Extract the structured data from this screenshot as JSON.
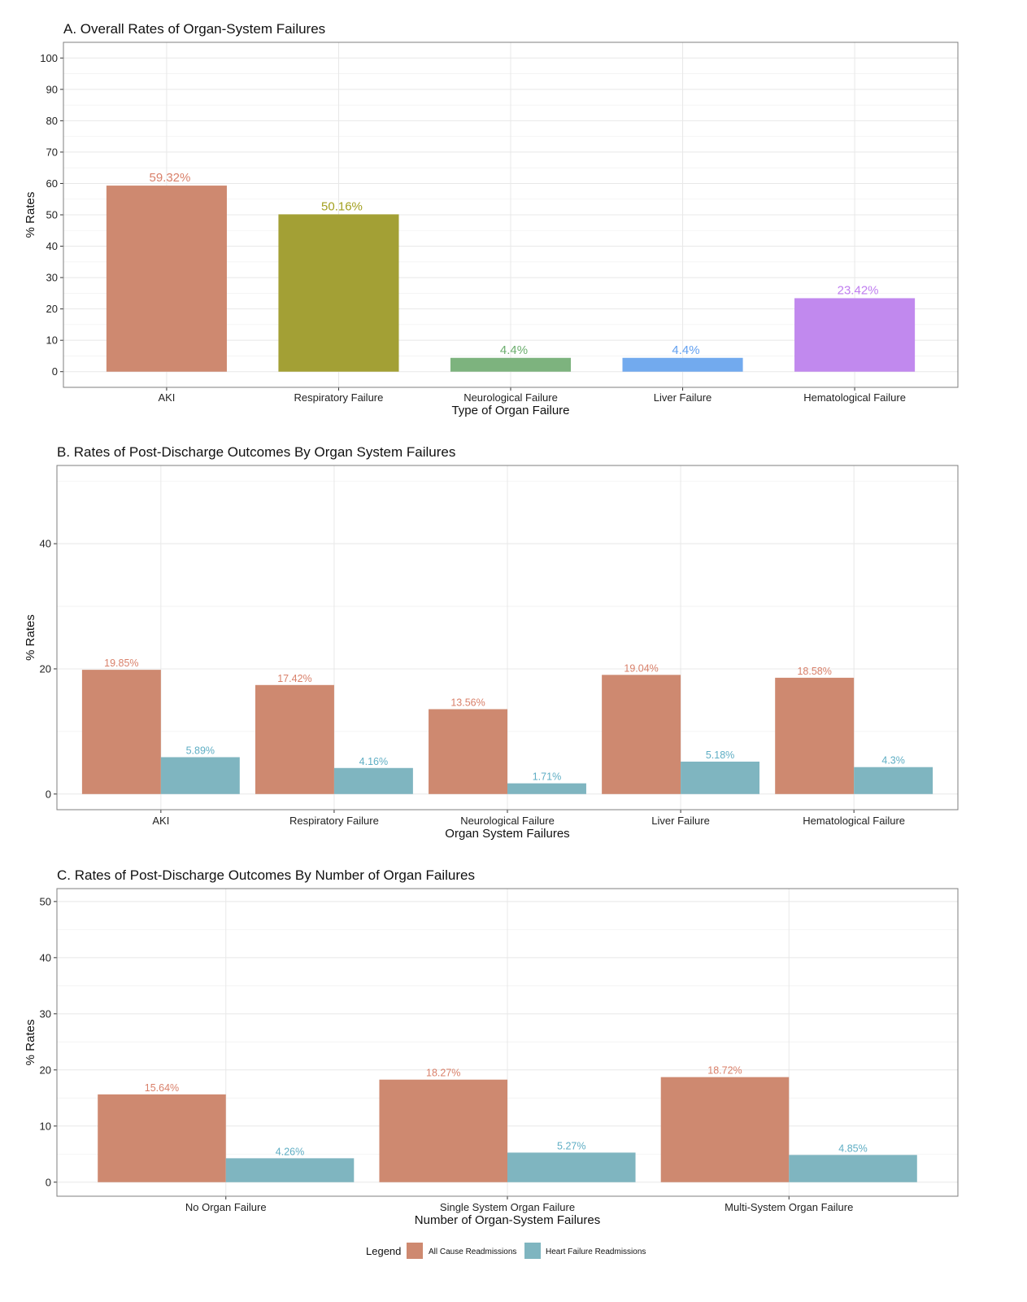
{
  "chart_data": [
    {
      "type": "bar",
      "title": "A. Overall Rates of Organ-System Failures",
      "xlabel": "Type of Organ Failure",
      "ylabel": "% Rates",
      "ylim": [
        -5,
        105
      ],
      "yticks": [
        0,
        10,
        20,
        30,
        40,
        50,
        60,
        70,
        80,
        90,
        100
      ],
      "grid": true,
      "categories": [
        "AKI",
        "Respiratory Failure",
        "Neurological Failure",
        "Liver Failure",
        "Hematological Failure"
      ],
      "values": [
        59.32,
        50.16,
        4.4,
        4.4,
        23.42
      ],
      "labels": [
        "59.32%",
        "50.16%",
        "4.4%",
        "4.4%",
        "23.42%"
      ],
      "colors": [
        "#CE8970",
        "#A3A035",
        "#7DB37E",
        "#72AAEE",
        "#C189EE"
      ],
      "label_colors": [
        "#D9806A",
        "#A3A020",
        "#6CAE6E",
        "#62A0F0",
        "#C07EF0"
      ]
    },
    {
      "type": "bar",
      "title": "B. Rates of Post-Discharge Outcomes By Organ System Failures",
      "xlabel": "Organ System Failures",
      "ylabel": "% Rates",
      "ylim": [
        -2.5,
        52.5
      ],
      "yticks": [
        0,
        20,
        40
      ],
      "grid": true,
      "categories": [
        "AKI",
        "Respiratory Failure",
        "Neurological Failure",
        "Liver Failure",
        "Hematological Failure"
      ],
      "series": [
        {
          "name": "All Cause Readmissions",
          "values": [
            19.85,
            17.42,
            13.56,
            19.04,
            18.58
          ],
          "labels": [
            "19.85%",
            "17.42%",
            "13.56%",
            "19.04%",
            "18.58%"
          ]
        },
        {
          "name": "Heart Failure Readmissions",
          "values": [
            5.89,
            4.16,
            1.71,
            5.18,
            4.3
          ],
          "labels": [
            "5.89%",
            "4.16%",
            "1.71%",
            "5.18%",
            "4.3%"
          ]
        }
      ]
    },
    {
      "type": "bar",
      "title": "C. Rates of Post-Discharge Outcomes By Number of Organ Failures",
      "xlabel": "Number of Organ-System Failures",
      "ylabel": "% Rates",
      "ylim": [
        -2.5,
        52.3
      ],
      "yticks": [
        0,
        10,
        20,
        30,
        40,
        50
      ],
      "grid": true,
      "categories": [
        "No Organ Failure",
        "Single System Organ Failure",
        "Multi-System Organ Failure"
      ],
      "series": [
        {
          "name": "All Cause Readmissions",
          "values": [
            15.64,
            18.27,
            18.72
          ],
          "labels": [
            "15.64%",
            "18.27%",
            "18.72%"
          ]
        },
        {
          "name": "Heart Failure Readmissions",
          "values": [
            4.26,
            5.27,
            4.85
          ],
          "labels": [
            "4.26%",
            "5.27%",
            "4.85%"
          ]
        }
      ]
    }
  ],
  "legend": {
    "title": "Legend",
    "placement": "bottom",
    "items": [
      {
        "name": "All Cause Readmissions",
        "color": "#CE8970",
        "label_color": "#D9806A"
      },
      {
        "name": "Heart Failure Readmissions",
        "color": "#7FB5C0",
        "label_color": "#5FAEC4"
      }
    ]
  }
}
